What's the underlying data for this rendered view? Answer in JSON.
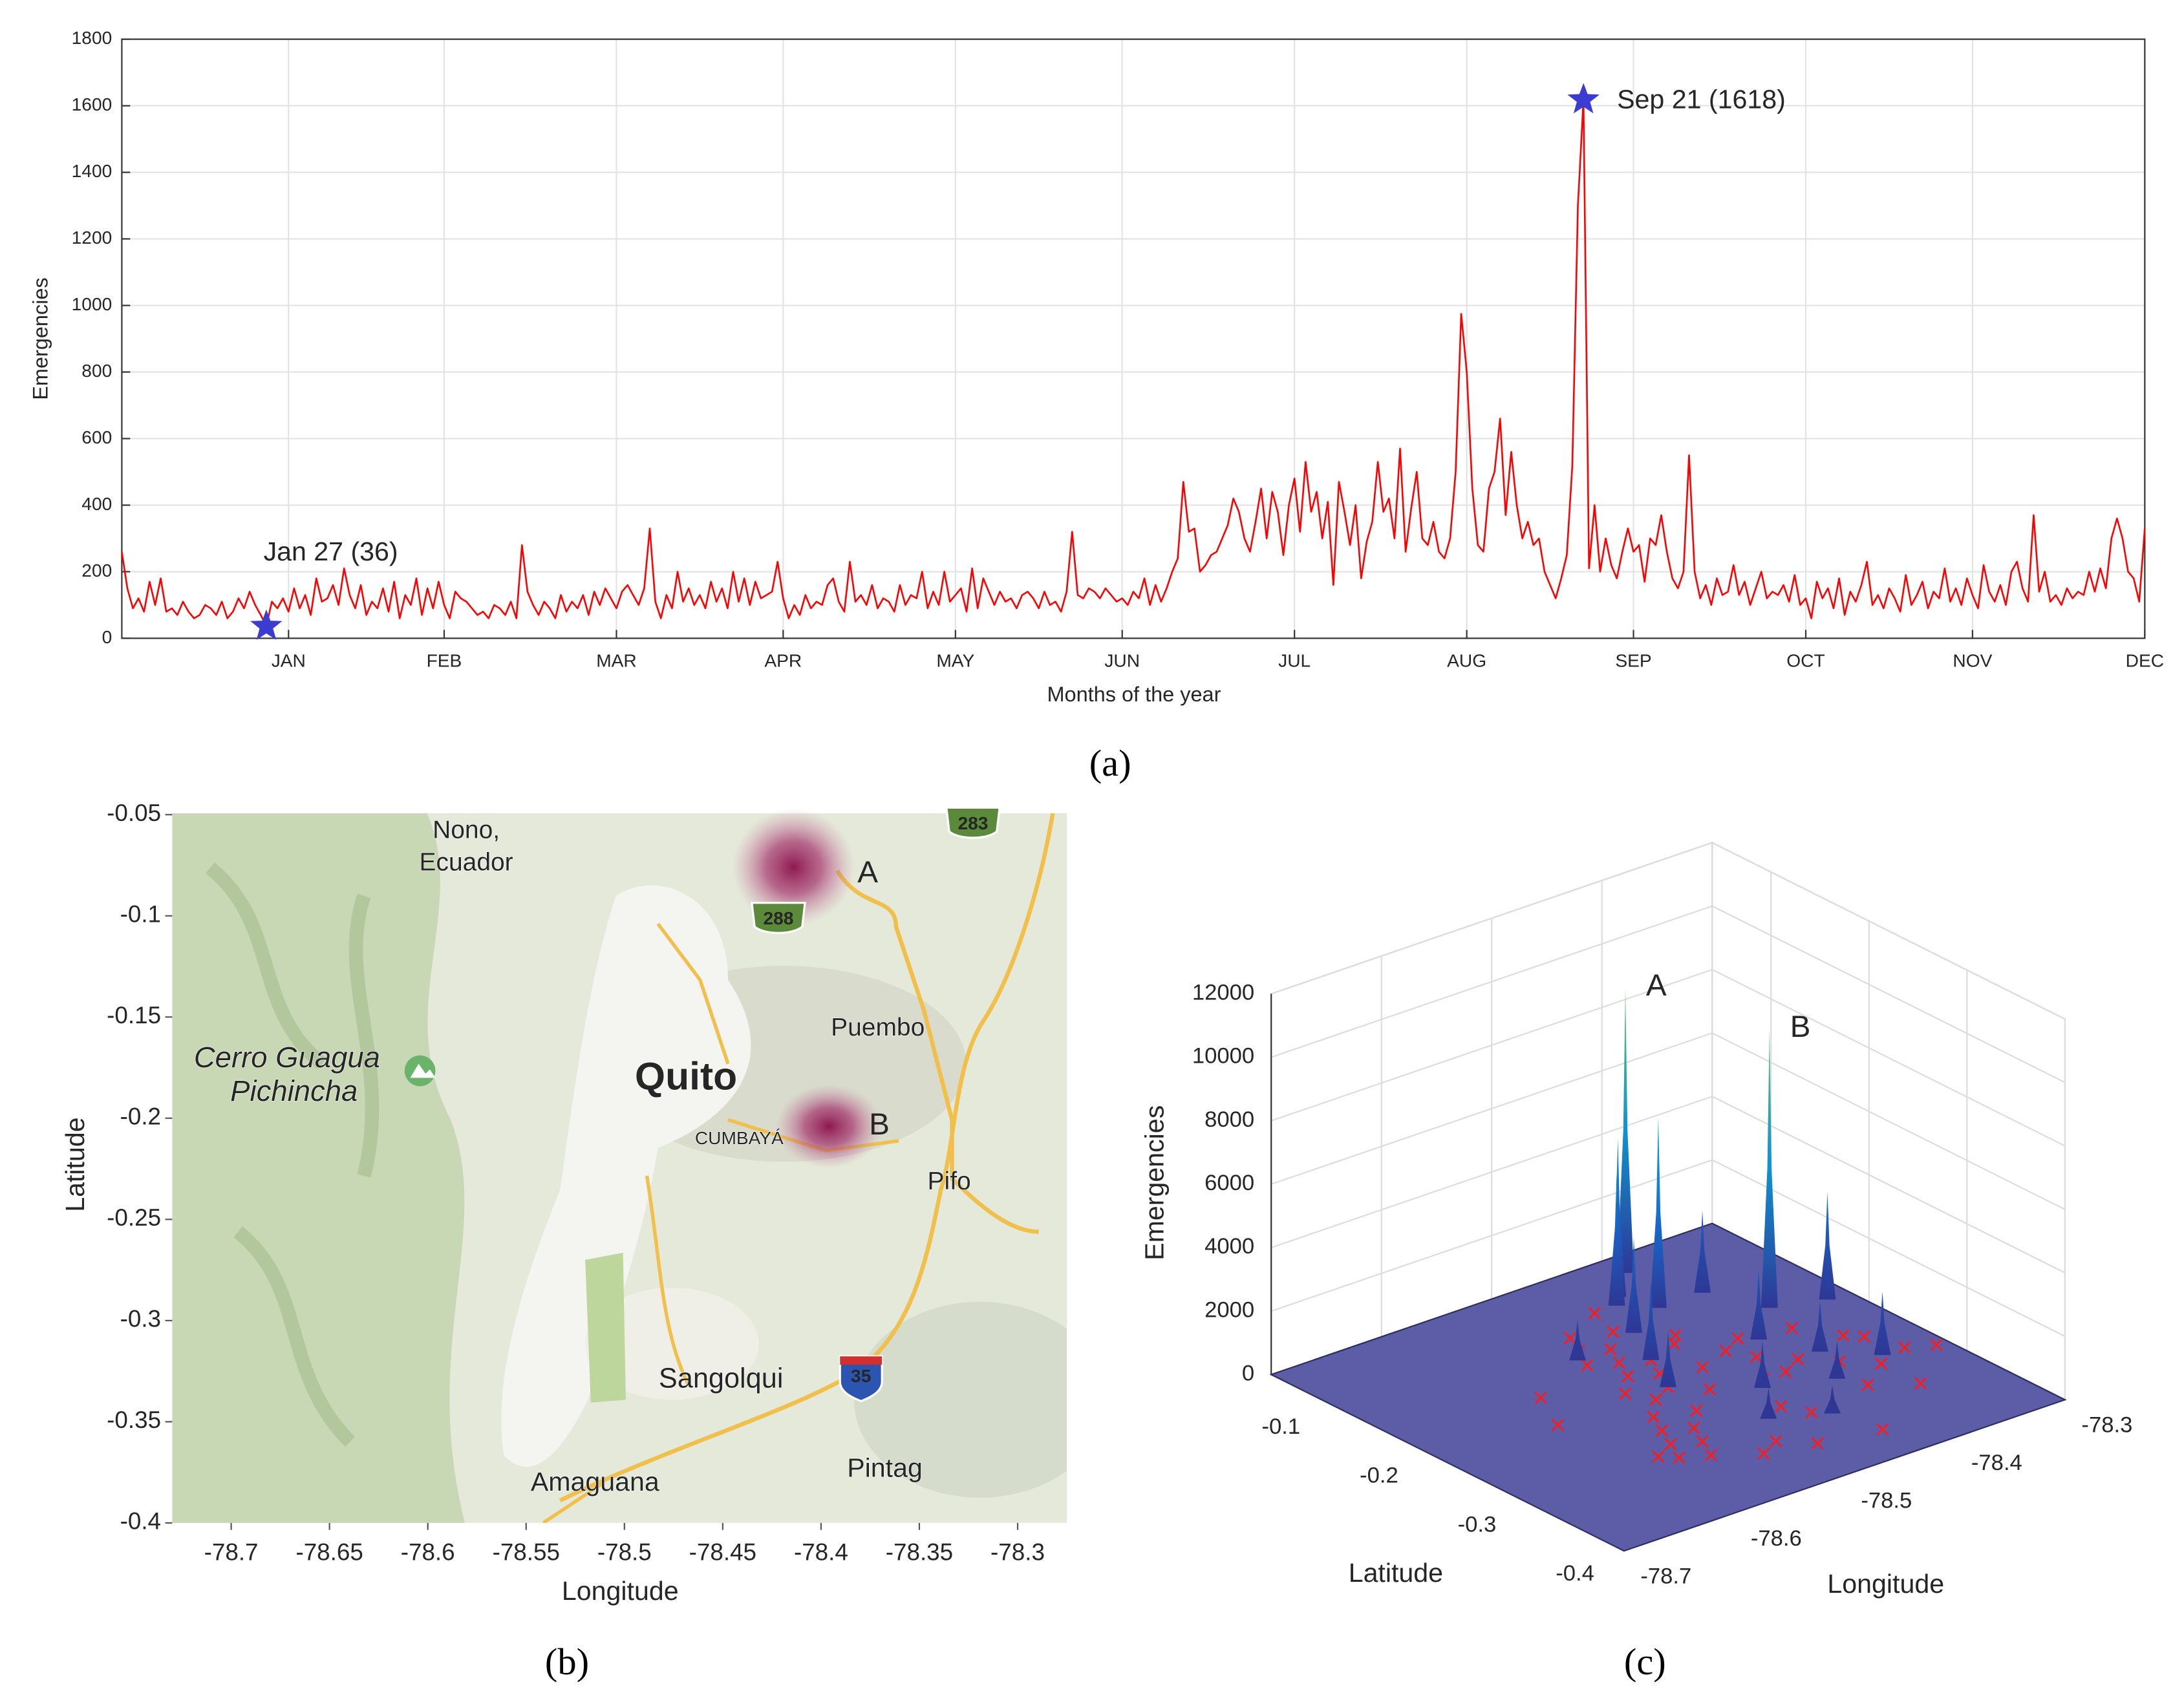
{
  "chart_data": [
    {
      "type": "line",
      "caption": "(a)",
      "xlabel": "Months of the year",
      "ylabel": "Emergencies",
      "color": "#ff0000",
      "marker_color": "#3c3cd2",
      "grid": true,
      "xlim": [
        1,
        365
      ],
      "xticks": [
        {
          "value": 31,
          "label": "JAN"
        },
        {
          "value": 59,
          "label": "FEB"
        },
        {
          "value": 90,
          "label": "MAR"
        },
        {
          "value": 120,
          "label": "APR"
        },
        {
          "value": 151,
          "label": "MAY"
        },
        {
          "value": 181,
          "label": "JUN"
        },
        {
          "value": 212,
          "label": "JUL"
        },
        {
          "value": 243,
          "label": "AUG"
        },
        {
          "value": 273,
          "label": "SEP"
        },
        {
          "value": 304,
          "label": "OCT"
        },
        {
          "value": 334,
          "label": "NOV"
        },
        {
          "value": 365,
          "label": "DEC"
        }
      ],
      "ylim": [
        0,
        1800
      ],
      "yticks": [
        0,
        200,
        400,
        600,
        800,
        1000,
        1200,
        1400,
        1600,
        1800
      ],
      "annotations": [
        {
          "text": "Jan 27 (36)",
          "x": 27,
          "y": 36
        },
        {
          "text": "Sep 21 (1618)",
          "x": 264,
          "y": 1618
        }
      ],
      "x": [
        1,
        2,
        3,
        4,
        5,
        6,
        7,
        8,
        9,
        10,
        11,
        12,
        13,
        14,
        15,
        16,
        17,
        18,
        19,
        20,
        21,
        22,
        23,
        24,
        25,
        26,
        27,
        28,
        29,
        30,
        31,
        32,
        33,
        34,
        35,
        36,
        37,
        38,
        39,
        40,
        41,
        42,
        43,
        44,
        45,
        46,
        47,
        48,
        49,
        50,
        51,
        52,
        53,
        54,
        55,
        56,
        57,
        58,
        59,
        60,
        61,
        62,
        63,
        64,
        65,
        66,
        67,
        68,
        69,
        70,
        71,
        72,
        73,
        74,
        75,
        76,
        77,
        78,
        79,
        80,
        81,
        82,
        83,
        84,
        85,
        86,
        87,
        88,
        89,
        90,
        91,
        92,
        93,
        94,
        95,
        96,
        97,
        98,
        99,
        100,
        101,
        102,
        103,
        104,
        105,
        106,
        107,
        108,
        109,
        110,
        111,
        112,
        113,
        114,
        115,
        116,
        117,
        118,
        119,
        120,
        121,
        122,
        123,
        124,
        125,
        126,
        127,
        128,
        129,
        130,
        131,
        132,
        133,
        134,
        135,
        136,
        137,
        138,
        139,
        140,
        141,
        142,
        143,
        144,
        145,
        146,
        147,
        148,
        149,
        150,
        151,
        152,
        153,
        154,
        155,
        156,
        157,
        158,
        159,
        160,
        161,
        162,
        163,
        164,
        165,
        166,
        167,
        168,
        169,
        170,
        171,
        172,
        173,
        174,
        175,
        176,
        177,
        178,
        179,
        180,
        181,
        182,
        183,
        184,
        185,
        186,
        187,
        188,
        189,
        190,
        191,
        192,
        193,
        194,
        195,
        196,
        197,
        198,
        199,
        200,
        201,
        202,
        203,
        204,
        205,
        206,
        207,
        208,
        209,
        210,
        211,
        212,
        213,
        214,
        215,
        216,
        217,
        218,
        219,
        220,
        221,
        222,
        223,
        224,
        225,
        226,
        227,
        228,
        229,
        230,
        231,
        232,
        233,
        234,
        235,
        236,
        237,
        238,
        239,
        240,
        241,
        242,
        243,
        244,
        245,
        246,
        247,
        248,
        249,
        250,
        251,
        252,
        253,
        254,
        255,
        256,
        257,
        258,
        259,
        260,
        261,
        262,
        263,
        264,
        265,
        266,
        267,
        268,
        269,
        270,
        271,
        272,
        273,
        274,
        275,
        276,
        277,
        278,
        279,
        280,
        281,
        282,
        283,
        284,
        285,
        286,
        287,
        288,
        289,
        290,
        291,
        292,
        293,
        294,
        295,
        296,
        297,
        298,
        299,
        300,
        301,
        302,
        303,
        304,
        305,
        306,
        307,
        308,
        309,
        310,
        311,
        312,
        313,
        314,
        315,
        316,
        317,
        318,
        319,
        320,
        321,
        322,
        323,
        324,
        325,
        326,
        327,
        328,
        329,
        330,
        331,
        332,
        333,
        334,
        335,
        336,
        337,
        338,
        339,
        340,
        341,
        342,
        343,
        344,
        345,
        346,
        347,
        348,
        349,
        350,
        351,
        352,
        353,
        354,
        355,
        356,
        357,
        358,
        359,
        360,
        361,
        362,
        363,
        364,
        365
      ],
      "values": [
        260,
        150,
        90,
        120,
        80,
        170,
        100,
        180,
        80,
        90,
        70,
        110,
        80,
        60,
        70,
        100,
        90,
        70,
        110,
        60,
        80,
        120,
        90,
        140,
        100,
        70,
        36,
        110,
        90,
        120,
        80,
        150,
        90,
        130,
        70,
        180,
        110,
        120,
        160,
        100,
        210,
        130,
        90,
        160,
        70,
        110,
        90,
        150,
        80,
        170,
        60,
        130,
        100,
        180,
        70,
        150,
        90,
        170,
        100,
        60,
        140,
        120,
        110,
        90,
        70,
        80,
        60,
        100,
        90,
        70,
        110,
        60,
        280,
        140,
        100,
        70,
        110,
        90,
        60,
        130,
        80,
        110,
        90,
        130,
        70,
        140,
        100,
        150,
        120,
        90,
        140,
        160,
        130,
        100,
        150,
        330,
        110,
        60,
        130,
        90,
        200,
        110,
        150,
        100,
        130,
        90,
        170,
        110,
        150,
        90,
        200,
        110,
        180,
        100,
        170,
        120,
        130,
        140,
        230,
        120,
        60,
        100,
        70,
        130,
        90,
        110,
        100,
        160,
        180,
        110,
        80,
        230,
        110,
        130,
        100,
        160,
        90,
        120,
        110,
        80,
        160,
        100,
        130,
        120,
        200,
        90,
        140,
        100,
        200,
        110,
        130,
        150,
        80,
        210,
        90,
        180,
        140,
        100,
        140,
        110,
        120,
        90,
        130,
        140,
        120,
        90,
        140,
        100,
        110,
        80,
        140,
        320,
        130,
        120,
        150,
        140,
        120,
        150,
        130,
        110,
        120,
        100,
        140,
        120,
        180,
        100,
        160,
        110,
        150,
        200,
        240,
        470,
        320,
        330,
        200,
        220,
        250,
        260,
        300,
        340,
        420,
        380,
        300,
        260,
        350,
        450,
        300,
        440,
        380,
        250,
        400,
        480,
        320,
        530,
        380,
        440,
        300,
        410,
        160,
        470,
        380,
        280,
        400,
        180,
        290,
        350,
        530,
        380,
        420,
        300,
        570,
        260,
        390,
        500,
        300,
        280,
        350,
        260,
        240,
        300,
        500,
        975,
        800,
        450,
        280,
        260,
        450,
        500,
        660,
        370,
        560,
        400,
        300,
        350,
        280,
        300,
        200,
        160,
        120,
        180,
        250,
        520,
        1300,
        1618,
        210,
        400,
        200,
        300,
        220,
        180,
        260,
        330,
        260,
        280,
        170,
        300,
        280,
        370,
        260,
        180,
        150,
        200,
        550,
        200,
        120,
        160,
        100,
        180,
        130,
        140,
        220,
        130,
        170,
        100,
        150,
        200,
        120,
        140,
        130,
        160,
        110,
        190,
        100,
        120,
        60,
        170,
        120,
        150,
        90,
        180,
        70,
        140,
        110,
        160,
        230,
        100,
        130,
        90,
        150,
        120,
        80,
        190,
        100,
        130,
        170,
        90,
        140,
        120,
        210,
        110,
        150,
        100,
        180,
        130,
        90,
        220,
        140,
        110,
        160,
        100,
        200,
        230,
        150,
        110,
        370,
        140,
        200,
        110,
        130,
        100,
        150,
        120,
        140,
        130,
        200,
        140,
        210,
        150,
        300,
        360,
        300,
        200,
        180,
        110,
        330
      ]
    },
    {
      "type": "map",
      "caption": "(b)",
      "xlabel": "Longitude",
      "ylabel": "Latitude",
      "xlim": [
        -78.73,
        -78.275
      ],
      "xticks": [
        -78.7,
        -78.65,
        -78.6,
        -78.55,
        -78.5,
        -78.45,
        -78.4,
        -78.35,
        -78.3
      ],
      "ylim": [
        -0.4,
        -0.05
      ],
      "yticks": [
        -0.05,
        -0.1,
        -0.15,
        -0.2,
        -0.25,
        -0.3,
        -0.35,
        -0.4
      ],
      "places": [
        "Nono,",
        "Ecuador",
        "Cerro Guagua",
        "Pichincha",
        "Quito",
        "Puembo",
        "CUMBAYÁ",
        "Pifo",
        "Sangolqui",
        "Amaguana",
        "Pintag"
      ],
      "shields": [
        "283",
        "288",
        "35"
      ],
      "hotspots": [
        {
          "label": "A",
          "x": -78.414,
          "y": -0.076
        },
        {
          "label": "B",
          "x": -78.396,
          "y": -0.204
        }
      ]
    },
    {
      "type": "surface3d",
      "caption": "(c)",
      "xlabel": "Longitude",
      "ylabel": "Latitude",
      "zlabel": "Emergencies",
      "floor_color": "#5d5ca6",
      "xlim": [
        -78.7,
        -78.3
      ],
      "xticks": [
        -78.7,
        -78.6,
        -78.5,
        -78.4,
        -78.3
      ],
      "ylim": [
        -0.4,
        -0.04
      ],
      "yticks": [
        -0.1,
        -0.2,
        -0.3,
        -0.4
      ],
      "zlim": [
        0,
        12000
      ],
      "zticks": [
        0,
        2000,
        4000,
        6000,
        8000,
        10000,
        12000
      ],
      "peaks": {
        "lat": [
          -0.064,
          -0.166,
          -0.1,
          -0.12,
          -0.09,
          -0.14,
          -0.18,
          -0.22,
          -0.26,
          -0.2,
          -0.24,
          -0.18,
          -0.28,
          -0.3,
          -0.15,
          -0.27,
          -0.12,
          -0.32
        ],
        "lon": [
          -78.4,
          -78.36,
          -78.44,
          -78.42,
          -78.43,
          -78.46,
          -78.48,
          -78.5,
          -78.45,
          -78.4,
          -78.38,
          -78.32,
          -78.4,
          -78.48,
          -78.52,
          -78.35,
          -78.38,
          -78.44
        ],
        "values": [
          9000,
          8800,
          4200,
          6000,
          5000,
          3000,
          2500,
          1800,
          1500,
          2200,
          1600,
          3400,
          1200,
          1000,
          1300,
          2000,
          2600,
          900
        ],
        "labels": [
          "A",
          "B",
          null,
          null,
          null,
          null,
          null,
          null,
          null,
          null,
          null,
          null,
          null,
          null,
          null,
          null,
          null,
          null
        ]
      },
      "points": {
        "lat": [
          -0.12,
          -0.14,
          -0.15,
          -0.16,
          -0.17,
          -0.18,
          -0.19,
          -0.2,
          -0.21,
          -0.22,
          -0.23,
          -0.24,
          -0.25,
          -0.26,
          -0.27,
          -0.28,
          -0.29,
          -0.3,
          -0.31,
          -0.32,
          -0.13,
          -0.17,
          -0.21,
          -0.25,
          -0.29,
          -0.33,
          -0.22,
          -0.24,
          -0.26,
          -0.28,
          -0.2,
          -0.23,
          -0.27,
          -0.3,
          -0.19,
          -0.25,
          -0.31,
          -0.35,
          -0.1,
          -0.08,
          -0.16,
          -0.2,
          -0.24,
          -0.28,
          -0.32,
          -0.36,
          -0.18,
          -0.22,
          -0.3,
          -0.34
        ],
        "lon": [
          -78.5,
          -78.51,
          -78.49,
          -78.52,
          -78.5,
          -78.48,
          -78.51,
          -78.49,
          -78.53,
          -78.5,
          -78.52,
          -78.48,
          -78.54,
          -78.51,
          -78.55,
          -78.53,
          -78.56,
          -78.54,
          -78.57,
          -78.55,
          -78.47,
          -78.45,
          -78.46,
          -78.44,
          -78.46,
          -78.5,
          -78.42,
          -78.4,
          -78.38,
          -78.36,
          -78.43,
          -78.35,
          -78.33,
          -78.39,
          -78.41,
          -78.42,
          -78.45,
          -78.48,
          -78.46,
          -78.42,
          -78.44,
          -78.37,
          -78.34,
          -78.31,
          -78.36,
          -78.43,
          -78.58,
          -78.6,
          -78.58,
          -78.52
        ]
      }
    }
  ]
}
